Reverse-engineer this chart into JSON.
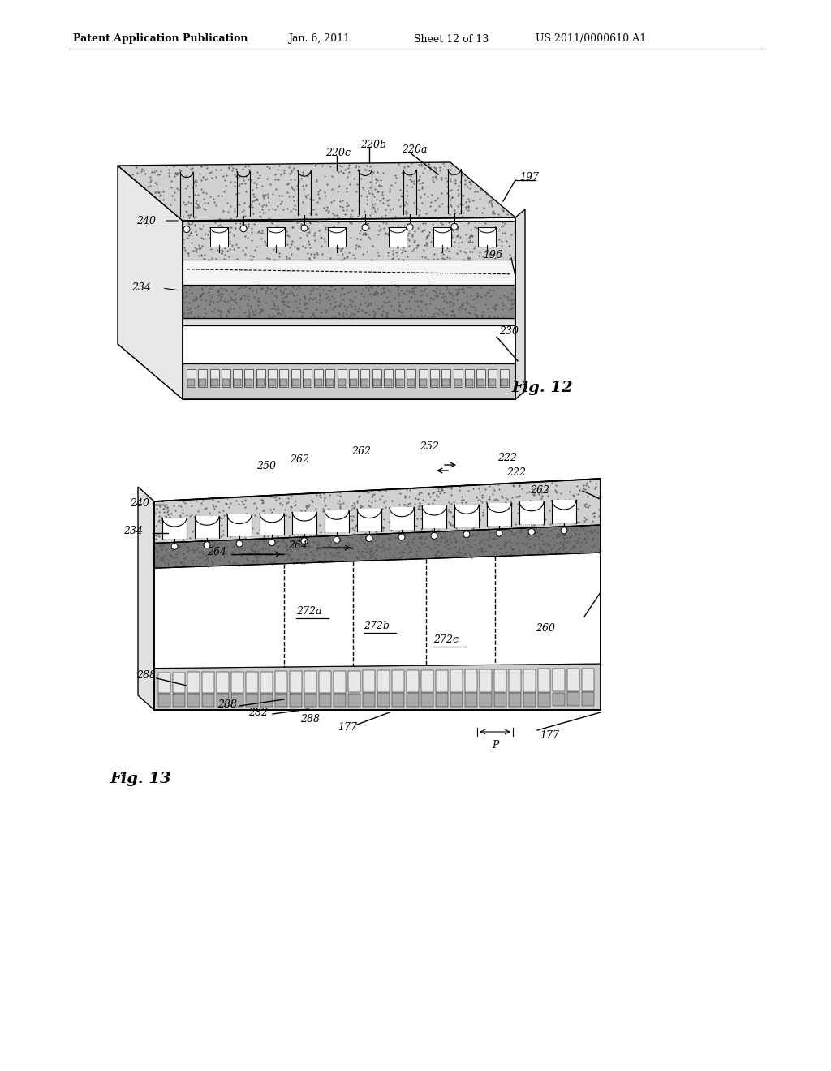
{
  "bg_color": "#ffffff",
  "header_text": "Patent Application Publication",
  "header_date": "Jan. 6, 2011",
  "header_sheet": "Sheet 12 of 13",
  "header_patent": "US 2011/0000610 A1",
  "fig12_label": "Fig. 12",
  "fig13_label": "Fig. 13"
}
